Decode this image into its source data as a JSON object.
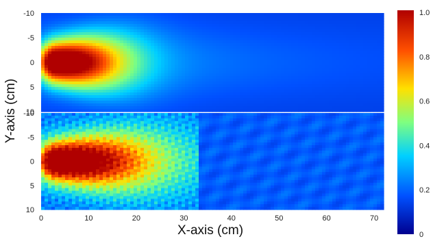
{
  "chart_data": {
    "type": "heatmap",
    "xlabel": "X-axis (cm)",
    "ylabel": "Y-axis (cm)",
    "xlim": [
      0,
      72
    ],
    "ylim": [
      -10,
      10
    ],
    "x_ticks": [
      "0",
      "10",
      "20",
      "30",
      "40",
      "50",
      "60",
      "70"
    ],
    "y_ticks": [
      "-10",
      "-5",
      "0",
      "5",
      "10"
    ],
    "colorbar": {
      "range": [
        0,
        1.0
      ],
      "tick_labels": [
        "1.0",
        "0.8",
        "0.6",
        "0.4",
        "0.2",
        "0"
      ],
      "colormap": [
        "#00008f",
        "#0050ff",
        "#00d0ff",
        "#7fff80",
        "#ffe000",
        "#ff5000",
        "#b00000"
      ]
    },
    "panels": [
      {
        "name": "top",
        "description_values": {
          "peak_intensity": 1.0,
          "peak_x_cm": 3,
          "peak_y_cm": 0,
          "background_intensity": 0.15
        }
      },
      {
        "name": "bottom",
        "description_values": {
          "peak_intensity": 0.95,
          "peak_x_cm": 3,
          "peak_y_cm": 0,
          "background_intensity": 0.2,
          "noisy": true
        }
      }
    ]
  }
}
